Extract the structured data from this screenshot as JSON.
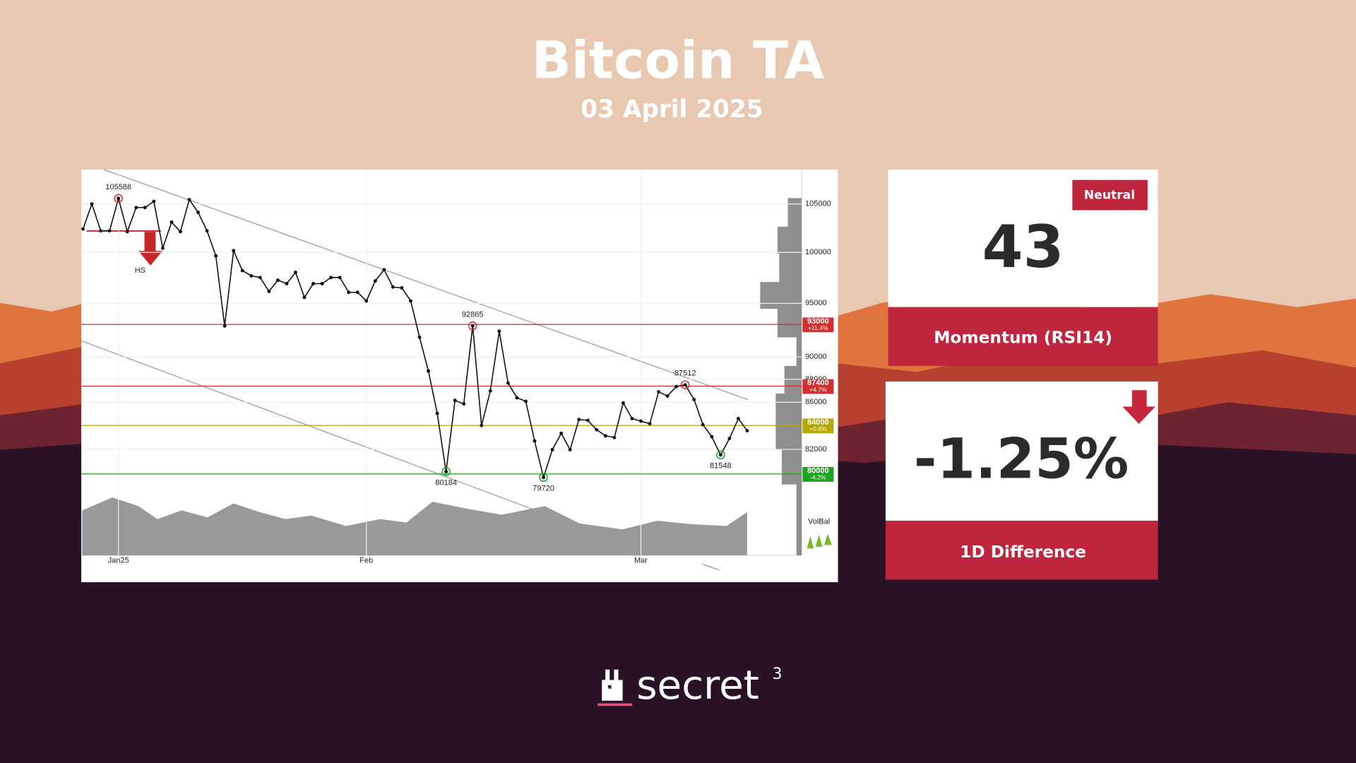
{
  "header": {
    "title": "Bitcoin TA",
    "date": "03 April 2025"
  },
  "chart_data": {
    "type": "line",
    "categories": [
      null,
      null,
      null,
      null,
      "Jan25",
      null,
      null,
      null,
      null,
      null,
      null,
      null,
      null,
      null,
      null,
      null,
      null,
      null,
      null,
      null,
      null,
      null,
      null,
      null,
      null,
      null,
      null,
      null,
      null,
      null,
      null,
      null,
      "Feb",
      null,
      null,
      null,
      null,
      null,
      null,
      null,
      null,
      null,
      null,
      null,
      null,
      null,
      null,
      null,
      null,
      null,
      null,
      null,
      null,
      null,
      null,
      null,
      null,
      null,
      null,
      null,
      null,
      null,
      null,
      "Mar",
      null,
      null,
      null,
      null,
      null,
      null,
      null,
      null,
      null,
      null,
      null,
      null
    ],
    "values": [
      102380,
      105000,
      102200,
      102200,
      105586,
      102110,
      104620,
      104620,
      105270,
      100430,
      103090,
      102110,
      105460,
      104110,
      102200,
      99650,
      92860,
      100170,
      98180,
      97670,
      97500,
      96150,
      97240,
      96900,
      98010,
      95570,
      96900,
      96900,
      97500,
      97500,
      96060,
      96060,
      95230,
      97160,
      98270,
      96570,
      96490,
      95230,
      91810,
      88740,
      85030,
      80184,
      86150,
      85850,
      92865,
      84000,
      86980,
      92370,
      87670,
      86380,
      86070,
      82700,
      79720,
      81980,
      83340,
      81980,
      84510,
      84440,
      83640,
      83130,
      82990,
      85930,
      84590,
      84370,
      84150,
      86900,
      86530,
      87360,
      87512,
      86230,
      84070,
      83060,
      81548,
      82910,
      84590,
      83560
    ],
    "value_labels": [
      null,
      null,
      null,
      null,
      "105586",
      null,
      null,
      null,
      null,
      null,
      null,
      null,
      null,
      null,
      null,
      null,
      null,
      null,
      null,
      null,
      null,
      null,
      null,
      null,
      null,
      null,
      null,
      null,
      null,
      null,
      null,
      null,
      null,
      null,
      null,
      null,
      null,
      null,
      null,
      null,
      null,
      "80184",
      null,
      null,
      "92865",
      null,
      null,
      null,
      null,
      null,
      null,
      null,
      "79720",
      null,
      null,
      null,
      null,
      null,
      null,
      null,
      null,
      null,
      null,
      null,
      null,
      null,
      null,
      null,
      "87512",
      null,
      null,
      null,
      "81548",
      null,
      null,
      null
    ],
    "color": "#111111",
    "log": true,
    "ylim": [
      73700,
      108700
    ],
    "yticks": [
      105000,
      100000,
      95000,
      90000,
      88000,
      86000,
      82000
    ],
    "levels": [
      {
        "value": 93000,
        "change": "+11.4%",
        "color": "#d32f2f"
      },
      {
        "value": 87400,
        "change": "+4.7%",
        "color": "#d32f2f"
      },
      {
        "value": 84000,
        "change": "+0.6%",
        "color": "#b5a800"
      },
      {
        "value": 80000,
        "change": "-4.2%",
        "color": "#1ea31e"
      }
    ],
    "annotations": [
      "HS",
      "VolBal"
    ]
  },
  "cards": {
    "rsi": {
      "badge": "Neutral",
      "value": 43,
      "label": "Momentum (RSI14)"
    },
    "difference": {
      "value": "-1.25%",
      "label": "1D Difference"
    }
  },
  "logo": {
    "text": "secret",
    "superscript": "3"
  }
}
